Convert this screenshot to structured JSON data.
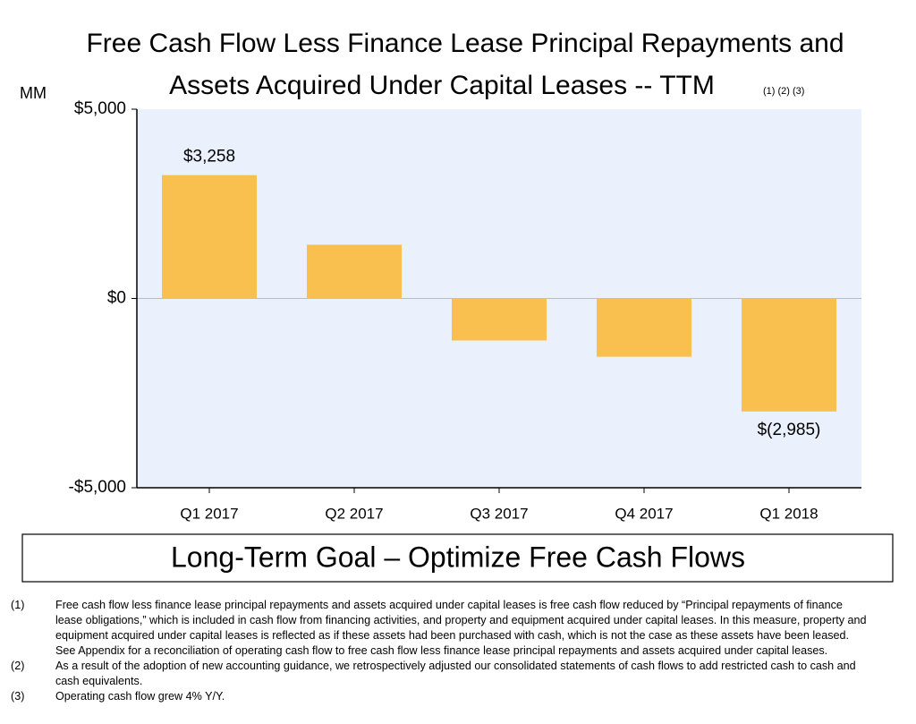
{
  "chart_data": {
    "type": "bar",
    "title_lines": [
      "Free Cash Flow Less Finance Lease Principal Repayments and",
      "Assets Acquired Under Capital Leases -- TTM"
    ],
    "title_note": "(1) (2) (3)",
    "y_unit": "MM",
    "categories": [
      "Q1 2017",
      "Q2 2017",
      "Q3 2017",
      "Q4 2017",
      "Q1 2018"
    ],
    "values": [
      3258,
      1420,
      -1110,
      -1540,
      -2985
    ],
    "value_labels": [
      "$3,258",
      null,
      null,
      null,
      "$(2,985)"
    ],
    "color": "#f9bf4f",
    "ylim": [
      -5000,
      5000
    ],
    "yticks": [
      {
        "value": -5000,
        "label": "-$5,000"
      },
      {
        "value": 0,
        "label": "$0"
      },
      {
        "value": 5000,
        "label": "$5,000"
      }
    ],
    "grid": false
  },
  "goal_box": "Long-Term Goal – Optimize Free Cash Flows",
  "footnotes": [
    {
      "marker": "(1)",
      "text": "Free cash flow less finance lease principal repayments and assets acquired under capital leases is free cash flow reduced by “Principal repayments of finance lease obligations,” which is included in cash flow from financing activities, and property and equipment acquired under capital leases. In this measure, property and equipment acquired under capital leases is reflected as if these assets had been purchased with cash, which is not the case as these assets have been leased. See Appendix for a reconciliation of operating cash flow to free cash flow less finance lease principal repayments and assets acquired under capital leases."
    },
    {
      "marker": "(2)",
      "text": "As a result of the adoption of new accounting guidance, we retrospectively adjusted our consolidated statements of cash flows to add restricted cash to cash and cash equivalents."
    },
    {
      "marker": "(3)",
      "text": "Operating cash flow grew 4% Y/Y."
    }
  ]
}
